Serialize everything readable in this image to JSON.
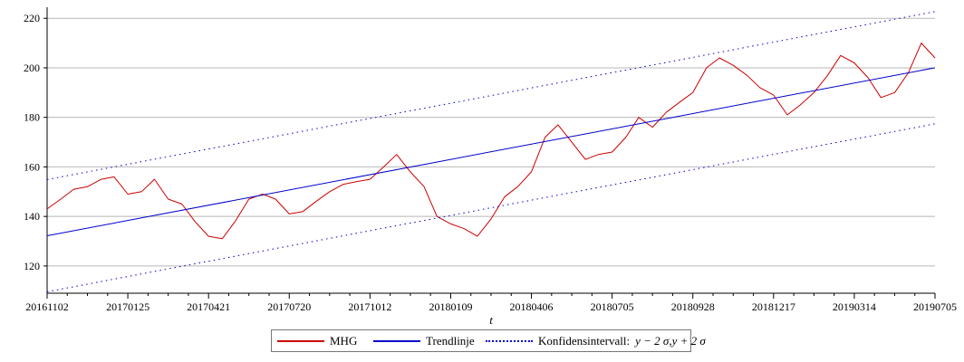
{
  "chart_data": {
    "type": "line",
    "title": "",
    "xlabel": "t",
    "ylabel": "",
    "ylim": [
      109,
      223
    ],
    "yticks": [
      120,
      140,
      160,
      180,
      200,
      220
    ],
    "grid": "horizontal",
    "legend_position": "bottom",
    "x_ticks": [
      "20161102",
      "20170125",
      "20170421",
      "20170720",
      "20171012",
      "20180109",
      "20180406",
      "20180705",
      "20180928",
      "20181217",
      "20190314",
      "20190705"
    ],
    "x_count": 12,
    "series": [
      {
        "name": "MHG",
        "color": "#cc0000",
        "style": "solid",
        "x": [
          0,
          0.17,
          0.33,
          0.5,
          0.67,
          0.83,
          1,
          1.17,
          1.33,
          1.5,
          1.67,
          1.83,
          2,
          2.17,
          2.33,
          2.5,
          2.67,
          2.83,
          3,
          3.17,
          3.33,
          3.5,
          3.67,
          3.83,
          4,
          4.17,
          4.33,
          4.5,
          4.67,
          4.83,
          5,
          5.17,
          5.33,
          5.5,
          5.67,
          5.83,
          6,
          6.17,
          6.33,
          6.5,
          6.67,
          6.83,
          7,
          7.17,
          7.33,
          7.5,
          7.67,
          7.83,
          8,
          8.17,
          8.33,
          8.5,
          8.67,
          8.83,
          9,
          9.17,
          9.33,
          9.5,
          9.67,
          9.83,
          10,
          10.17,
          10.33,
          10.5,
          10.67,
          10.83,
          11
        ],
        "values": [
          143,
          147,
          151,
          152,
          155,
          156,
          149,
          150,
          155,
          147,
          145,
          138,
          132,
          131,
          138,
          147,
          149,
          147,
          141,
          142,
          146,
          150,
          153,
          154,
          155,
          160,
          165,
          158,
          152,
          140,
          137,
          135,
          132,
          139,
          148,
          152,
          158,
          172,
          177,
          170,
          163,
          165,
          166,
          172,
          180,
          176,
          182,
          186,
          190,
          200,
          204,
          201,
          197,
          192,
          189,
          181,
          185,
          190,
          197,
          205,
          202,
          196,
          188,
          190,
          198,
          210,
          204
        ]
      },
      {
        "name": "Trendlinje",
        "color": "#0000cc",
        "style": "solid",
        "x": [
          0,
          11
        ],
        "values": [
          132.2,
          200
        ]
      },
      {
        "name": "Konfidensintervall:",
        "color": "#0000cc",
        "style": "dotted",
        "x": [
          0,
          11
        ],
        "values": [
          154.9,
          222.7
        ]
      },
      {
        "name": "",
        "color": "#0000cc",
        "style": "dotted",
        "x": [
          0,
          11
        ],
        "values": [
          109.6,
          177.4
        ]
      }
    ]
  },
  "legend": {
    "mhg": "MHG",
    "trend": "Trendlinje",
    "conf": "Konfidensintervall:",
    "conf_expr_1": "y − 2 σ",
    "conf_sep": " , ",
    "conf_expr_2": "y + 2 σ"
  }
}
